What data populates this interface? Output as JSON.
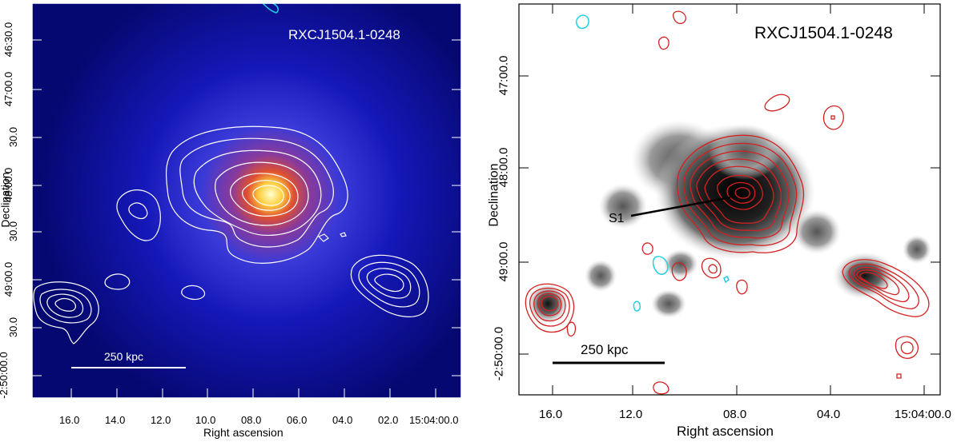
{
  "left": {
    "title": "RXCJ1504.1-0248",
    "xlabel": "Right ascension",
    "ylabel": "Declination",
    "scale_bar": "250 kpc",
    "xticks": [
      "16.0",
      "14.0",
      "12.0",
      "10.0",
      "08.0",
      "06.0",
      "04.0",
      "02.0",
      "15:04:00.0"
    ],
    "yticks": [
      "46:30.0",
      "47:00.0",
      "30.0",
      "48:00.0",
      "30.0",
      "49:00.0",
      "30.0",
      "-2:50:00.0"
    ]
  },
  "right": {
    "title": "RXCJ1504.1-0248",
    "xlabel": "Right ascension",
    "ylabel": "Declination",
    "scale_bar": "250 kpc",
    "source_label": "S1",
    "xticks": [
      "16.0",
      "12.0",
      "08.0",
      "04.0",
      "15:04:00.0"
    ],
    "yticks": [
      "47:00.0",
      "48:00.0",
      "49:00.0",
      "-2:50:00.0"
    ]
  },
  "colors": {
    "xray_background": "#0a0fa0",
    "xray_core": "#ffe060",
    "contour_left": "#ffffff",
    "contour_right": "#d42020",
    "negative_contour": "#20d0e0"
  }
}
